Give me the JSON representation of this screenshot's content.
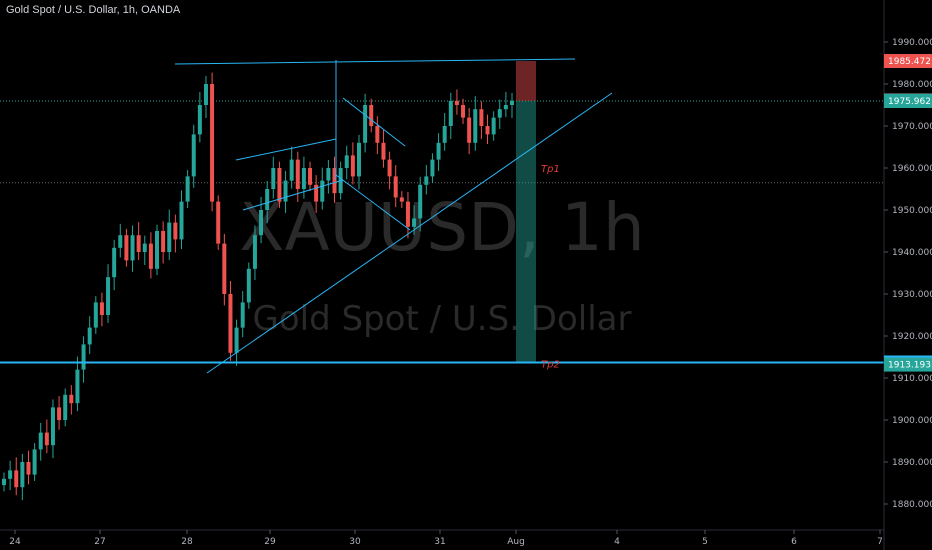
{
  "title": "Gold Spot / U.S. Dollar, 1h, OANDA",
  "watermark": {
    "symbol": "XAUUSD, 1h",
    "name": "Gold Spot / U.S. Dollar"
  },
  "colors": {
    "bull": "#26a69a",
    "bear": "#ef5350",
    "drawing": "#29b6f6",
    "axis_bg": "#000000"
  },
  "chart_data": {
    "type": "candlestick",
    "symbol": "XAUUSD",
    "timeframe": "1h",
    "ylim": [
      1872,
      2002
    ],
    "y_ticks": [
      "1880.000",
      "1890.000",
      "1900.000",
      "1910.000",
      "1920.000",
      "1930.000",
      "1940.000",
      "1950.000",
      "1960.000",
      "1970.000",
      "1980.000",
      "1990.000"
    ],
    "x_ticks": [
      "24",
      "27",
      "28",
      "29",
      "30",
      "31",
      "Aug",
      "4",
      "5",
      "6",
      "7"
    ],
    "candle_path": [
      1886,
      1888,
      1884,
      1890,
      1887,
      1893,
      1897,
      1894,
      1903,
      1900,
      1906,
      1904,
      1912,
      1918,
      1922,
      1928,
      1925,
      1934,
      1941,
      1944,
      1938,
      1944,
      1940,
      1942,
      1936,
      1945,
      1940,
      1947,
      1943,
      1952,
      1958,
      1968,
      1975,
      1980,
      1952,
      1942,
      1930,
      1916,
      1922,
      1928,
      1936,
      1944,
      1950,
      1955,
      1960,
      1952,
      1957,
      1962,
      1955,
      1960,
      1956,
      1952,
      1957,
      1960,
      1954,
      1960,
      1963,
      1958,
      1966,
      1975,
      1970,
      1966,
      1962,
      1958,
      1953,
      1952,
      1946,
      1948,
      1956,
      1958,
      1962,
      1966,
      1970,
      1976,
      1975,
      1972,
      1966,
      1974,
      1970,
      1968,
      1972,
      1974,
      1975,
      1976
    ],
    "price_labels": [
      {
        "value": "1985.472",
        "price": 1985.472,
        "color": "#ef5350"
      },
      {
        "value": "1976.039",
        "price": 1976.039,
        "color": "#d1d4dc"
      },
      {
        "value": "1975.962",
        "price": 1975.962,
        "color": "#26a69a"
      },
      {
        "value": "1913.695",
        "price": 1913.695,
        "color": "#29b6f6"
      },
      {
        "value": "1913.193",
        "price": 1913.193,
        "color": "#26a69a"
      }
    ],
    "annotations": [
      {
        "text": "Tp1",
        "price": 1960
      },
      {
        "text": "Tp2",
        "price": 1913.4
      }
    ],
    "levels": {
      "horizontal": 1913.695,
      "dotted_current": 1975.962,
      "dotted_mid": 1956.5
    },
    "position": {
      "entry": 1975.962,
      "stop": 1985.472,
      "target": 1913.695
    }
  }
}
